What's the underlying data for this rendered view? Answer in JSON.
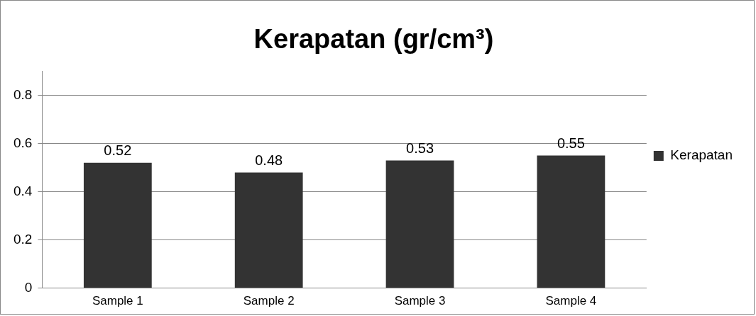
{
  "chart_data": {
    "type": "bar",
    "title": "Kerapatan (gr/cm³)",
    "categories": [
      "Sample 1",
      "Sample 2",
      "Sample 3",
      "Sample 4"
    ],
    "series": [
      {
        "name": "Kerapatan",
        "color": "#333333",
        "values": [
          0.52,
          0.48,
          0.53,
          0.55
        ]
      }
    ],
    "ylim": [
      0,
      0.9
    ],
    "yticks": [
      0,
      0.2,
      0.4,
      0.6,
      0.8
    ],
    "grid": "y",
    "legend": "right",
    "data_labels": true
  }
}
